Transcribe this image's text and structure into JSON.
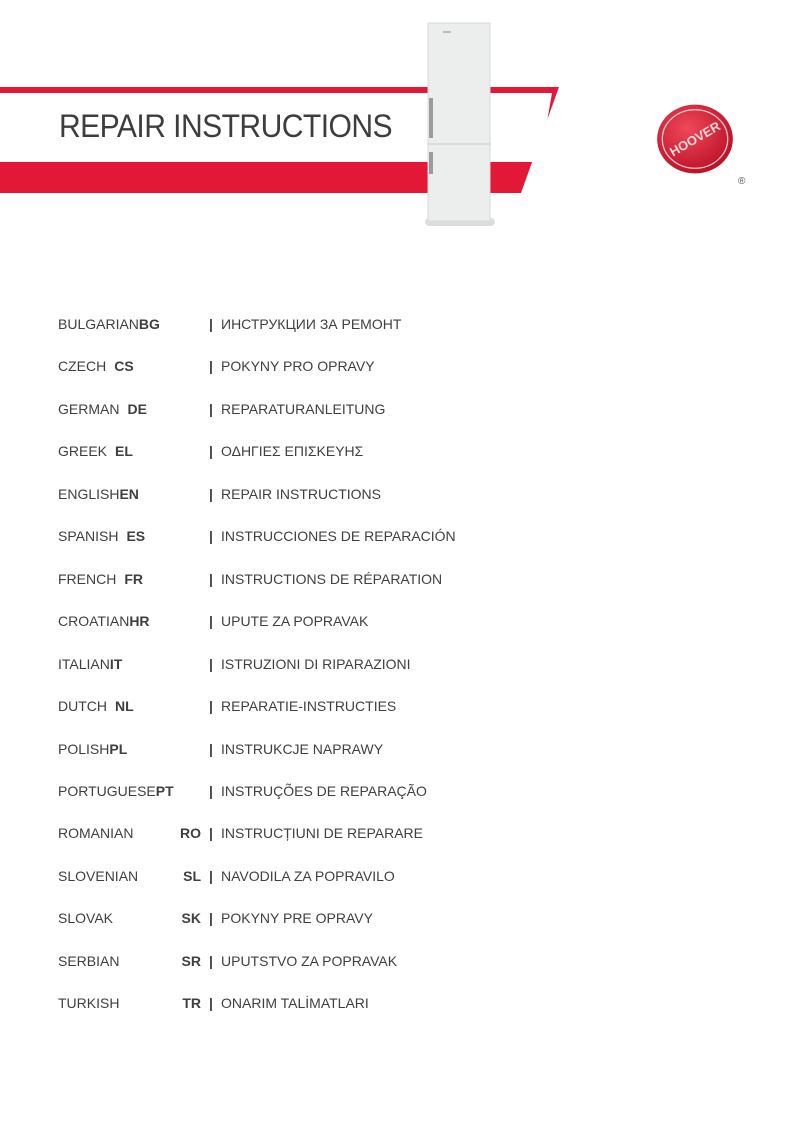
{
  "header": {
    "title": "REPAIR INSTRUCTIONS",
    "brand_logo_text": "HOOVER",
    "registered_mark": "®",
    "accent_color": "#e31837"
  },
  "languages": [
    {
      "name": "BULGARIAN",
      "code": "BG",
      "translation": "ИНСТРУКЦИИ ЗА РЕМОНТ"
    },
    {
      "name": "CZECH",
      "code": "CS",
      "translation": "POKYNY PRO OPRAVY"
    },
    {
      "name": "GERMAN",
      "code": "DE",
      "translation": "REPARATURANLEITUNG"
    },
    {
      "name": "GREEK",
      "code": "EL",
      "translation": "ΟΔΗΓΙΕΣ ΕΠΙΣΚΕΥΗΣ"
    },
    {
      "name": "ENGLISH",
      "code": "EN",
      "translation": "REPAIR INSTRUCTIONS"
    },
    {
      "name": "SPANISH",
      "code": "ES",
      "translation": "INSTRUCCIONES DE REPARACIÓN"
    },
    {
      "name": "FRENCH",
      "code": "FR",
      "translation": "INSTRUCTIONS DE RÉPARATION"
    },
    {
      "name": "CROATIAN",
      "code": "HR",
      "translation": "UPUTE ZA POPRAVAK"
    },
    {
      "name": "ITALIAN",
      "code": "IT",
      "translation": "ISTRUZIONI DI RIPARAZIONI"
    },
    {
      "name": "DUTCH",
      "code": "NL",
      "translation": "REPARATIE-INSTRUCTIES"
    },
    {
      "name": "POLISH",
      "code": "PL",
      "translation": "INSTRUKCJE NAPRAWY"
    },
    {
      "name": "PORTUGUESE",
      "code": "PT",
      "translation": "INSTRUÇÕES DE REPARAÇÃO"
    },
    {
      "name": "ROMANIAN",
      "code": "RO",
      "translation": "INSTRUCȚIUNI DE REPARARE"
    },
    {
      "name": "SLOVENIAN",
      "code": "SL",
      "translation": "NAVODILA ZA POPRAVILO"
    },
    {
      "name": "SLOVAK",
      "code": "SK",
      "translation": "POKYNY PRE OPRAVY"
    },
    {
      "name": "SERBIAN",
      "code": "SR",
      "translation": "UPUTSTVO ZA POPRAVAK"
    },
    {
      "name": "TURKISH",
      "code": "TR",
      "translation": "ONARIM TALİMATLARI"
    }
  ],
  "separator": "|"
}
